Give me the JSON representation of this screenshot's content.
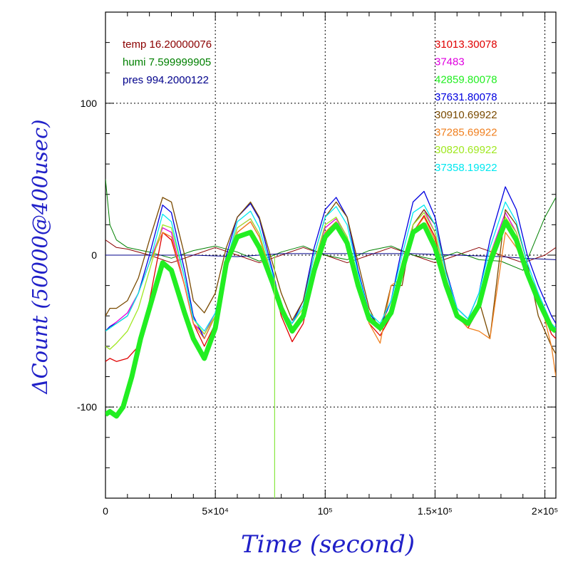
{
  "chart_data": {
    "type": "line",
    "xlabel": "Time (second)",
    "ylabel": "ΔCount (50000@400usec)",
    "xlim": [
      0,
      205000
    ],
    "ylim": [
      -160,
      160
    ],
    "x_ticks": [
      {
        "value": 0,
        "label": "0"
      },
      {
        "value": 50000,
        "label": "5×10⁴"
      },
      {
        "value": 100000,
        "label": "10⁵"
      },
      {
        "value": 150000,
        "label": "1.5×10⁵"
      },
      {
        "value": 200000,
        "label": "2×10⁵"
      }
    ],
    "y_ticks": [
      {
        "value": -100,
        "label": "-100"
      },
      {
        "value": 0,
        "label": "0"
      },
      {
        "value": 100,
        "label": "100"
      }
    ],
    "grid": "dotted at major ticks",
    "env_labels": [
      {
        "text": "temp 16.20000076",
        "color": "#8b0000"
      },
      {
        "text": "humi 7.599999905",
        "color": "#008000"
      },
      {
        "text": "pres 994.2000122",
        "color": "#00008b"
      }
    ],
    "series": [
      {
        "name": "31013.30078",
        "color": "#e00000",
        "kind": "osc",
        "x": [
          0,
          2000,
          5000,
          10000,
          15000,
          20000,
          26000,
          30000,
          36000,
          40000,
          45000,
          50000,
          55000,
          60000,
          66000,
          70000,
          76000,
          80000,
          85000,
          90000,
          95000,
          100000,
          105000,
          110000,
          115000,
          120000,
          125000,
          130000,
          135000,
          140000,
          145000,
          150000,
          155000,
          160000,
          165000,
          170000,
          175000,
          182000,
          187000,
          192000,
          197000,
          203000,
          205000
        ],
        "y": [
          -70,
          -68,
          -70,
          -68,
          -60,
          -30,
          15,
          10,
          -20,
          -45,
          -60,
          -45,
          -10,
          15,
          22,
          12,
          -15,
          -40,
          -57,
          -45,
          -10,
          15,
          22,
          10,
          -20,
          -45,
          -53,
          -40,
          -10,
          15,
          26,
          12,
          -20,
          -40,
          -48,
          -35,
          -5,
          25,
          12,
          -10,
          -30,
          -52,
          -55
        ]
      },
      {
        "name": "37483",
        "color": "#e000e0",
        "kind": "osc",
        "x": [
          0,
          2000,
          5000,
          10000,
          15000,
          20000,
          26000,
          30000,
          36000,
          40000,
          45000,
          50000,
          55000,
          60000,
          66000,
          70000,
          76000,
          80000,
          85000,
          90000,
          95000,
          100000,
          105000,
          110000,
          115000,
          120000,
          125000,
          130000,
          135000,
          140000,
          145000,
          150000,
          155000,
          160000,
          165000,
          170000,
          175000,
          182000,
          187000,
          192000,
          197000,
          203000,
          205000
        ],
        "y": [
          -50,
          -47,
          -44,
          -38,
          -25,
          -5,
          18,
          15,
          -20,
          -45,
          -52,
          -38,
          -5,
          18,
          24,
          14,
          -15,
          -35,
          -48,
          -38,
          -5,
          18,
          24,
          12,
          -15,
          -40,
          -48,
          -35,
          -5,
          20,
          30,
          15,
          -15,
          -38,
          -45,
          -30,
          0,
          28,
          15,
          -10,
          -28,
          -48,
          -50
        ]
      },
      {
        "name": "42859.80078",
        "color": "#22ee22",
        "kind": "band",
        "x": [
          0,
          2000,
          5000,
          8000,
          12000,
          16000,
          20000,
          26000,
          30000,
          36000,
          40000,
          45000,
          50000,
          55000,
          60000,
          66000,
          70000,
          76000,
          80000,
          85000,
          90000,
          95000,
          100000,
          105000,
          110000,
          115000,
          120000,
          125000,
          130000,
          135000,
          140000,
          145000,
          150000,
          155000,
          160000,
          165000,
          170000,
          175000,
          182000,
          187000,
          192000,
          197000,
          203000,
          205000
        ],
        "y": [
          -105,
          -103,
          -106,
          -100,
          -80,
          -55,
          -35,
          -5,
          -10,
          -38,
          -55,
          -68,
          -48,
          -5,
          12,
          15,
          5,
          -18,
          -35,
          -50,
          -40,
          -10,
          12,
          20,
          8,
          -20,
          -42,
          -48,
          -38,
          -10,
          15,
          20,
          5,
          -20,
          -40,
          -45,
          -33,
          -5,
          22,
          10,
          -12,
          -30,
          -48,
          -50
        ]
      },
      {
        "name": "37631.80078",
        "color": "#0000e0",
        "kind": "osc",
        "x": [
          0,
          2000,
          5000,
          10000,
          15000,
          20000,
          26000,
          30000,
          36000,
          40000,
          45000,
          50000,
          55000,
          60000,
          66000,
          70000,
          76000,
          80000,
          85000,
          90000,
          95000,
          100000,
          105000,
          110000,
          115000,
          120000,
          125000,
          130000,
          135000,
          140000,
          145000,
          150000,
          155000,
          160000,
          165000,
          170000,
          175000,
          182000,
          187000,
          192000,
          197000,
          203000,
          205000
        ],
        "y": [
          -50,
          -47,
          -45,
          -40,
          -25,
          0,
          33,
          28,
          -10,
          -40,
          -55,
          -40,
          0,
          25,
          34,
          24,
          -10,
          -35,
          -45,
          -30,
          5,
          30,
          38,
          25,
          -10,
          -38,
          -48,
          -30,
          5,
          35,
          42,
          25,
          -10,
          -35,
          -42,
          -25,
          10,
          45,
          30,
          0,
          -20,
          -40,
          -45
        ]
      },
      {
        "name": "30910.69922",
        "color": "#7a4a00",
        "kind": "osc",
        "x": [
          0,
          2000,
          5000,
          10000,
          15000,
          20000,
          26000,
          30000,
          36000,
          40000,
          45000,
          50000,
          55000,
          60000,
          66000,
          70000,
          76000,
          80000,
          85000,
          90000,
          95000,
          100000,
          105000,
          110000,
          115000,
          120000,
          125000,
          130000,
          135000,
          140000,
          145000,
          150000,
          155000,
          160000,
          165000,
          170000,
          175000,
          182000,
          187000,
          192000,
          197000,
          203000,
          205000
        ],
        "y": [
          -40,
          -35,
          -35,
          -30,
          -15,
          10,
          38,
          35,
          0,
          -30,
          -38,
          -25,
          5,
          25,
          35,
          25,
          -5,
          -25,
          -43,
          -30,
          0,
          25,
          35,
          25,
          -5,
          -35,
          -50,
          -20,
          -20,
          20,
          30,
          20,
          -10,
          -40,
          -45,
          -30,
          -55,
          30,
          20,
          -5,
          -40,
          -60,
          -65
        ]
      },
      {
        "name": "37285.69922",
        "color": "#f08020",
        "kind": "osc",
        "x": [
          0,
          5000,
          10000,
          15000,
          20000,
          26000,
          30000,
          36000,
          40000,
          45000,
          50000,
          55000,
          60000,
          66000,
          70000,
          76000,
          80000,
          85000,
          90000,
          95000,
          100000,
          105000,
          110000,
          115000,
          120000,
          125000,
          130000,
          135000,
          140000,
          145000,
          150000,
          155000,
          160000,
          165000,
          170000,
          175000,
          182000,
          187000,
          192000,
          197000,
          203000,
          205000
        ],
        "y": [
          -50,
          -45,
          -40,
          -25,
          -5,
          15,
          12,
          -20,
          -45,
          -55,
          -40,
          -5,
          15,
          22,
          12,
          -15,
          -35,
          -50,
          -40,
          -5,
          15,
          22,
          10,
          -15,
          -45,
          -58,
          -20,
          -15,
          15,
          25,
          10,
          -20,
          -40,
          -48,
          -50,
          -55,
          15,
          5,
          -10,
          -25,
          -60,
          -80
        ]
      },
      {
        "name": "30820.69922",
        "color": "#a0e820",
        "kind": "osc",
        "x": [
          0,
          2000,
          5000,
          10000,
          15000,
          20000,
          26000,
          30000,
          36000,
          40000,
          45000,
          50000,
          55000,
          60000,
          66000,
          70000,
          76000,
          80000,
          85000,
          90000,
          95000,
          100000,
          105000,
          110000,
          115000,
          120000,
          125000,
          130000,
          135000,
          140000,
          145000,
          150000,
          155000,
          160000,
          165000,
          170000,
          175000,
          182000,
          187000,
          192000,
          197000,
          203000,
          205000
        ],
        "y": [
          -60,
          -62,
          -58,
          -50,
          -35,
          -10,
          20,
          18,
          -15,
          -42,
          -52,
          -40,
          -5,
          18,
          24,
          14,
          -15,
          -35,
          -45,
          -35,
          -5,
          20,
          25,
          12,
          -15,
          -40,
          -48,
          -35,
          -5,
          20,
          28,
          15,
          -15,
          -38,
          -45,
          -30,
          0,
          25,
          15,
          -10,
          -28,
          -48,
          -50
        ]
      },
      {
        "name": "37358.19922",
        "color": "#00e8f0",
        "kind": "osc",
        "x": [
          0,
          2000,
          5000,
          10000,
          15000,
          20000,
          26000,
          30000,
          36000,
          40000,
          45000,
          50000,
          55000,
          60000,
          66000,
          70000,
          76000,
          80000,
          85000,
          90000,
          95000,
          100000,
          105000,
          110000,
          115000,
          120000,
          125000,
          130000,
          135000,
          140000,
          145000,
          150000,
          155000,
          160000,
          165000,
          170000,
          175000,
          182000,
          187000,
          192000,
          197000,
          203000,
          205000
        ],
        "y": [
          -50,
          -48,
          -45,
          -40,
          -25,
          -5,
          27,
          22,
          -15,
          -42,
          -50,
          -38,
          -5,
          22,
          29,
          18,
          -12,
          -35,
          -45,
          -33,
          0,
          25,
          32,
          20,
          -12,
          -38,
          -45,
          -30,
          0,
          28,
          33,
          20,
          -12,
          -35,
          -42,
          -25,
          5,
          35,
          22,
          -5,
          -25,
          -45,
          -48
        ]
      },
      {
        "name": "temp 16.20000076",
        "color": "#8b0000",
        "kind": "env",
        "x": [
          0,
          5000,
          10000,
          20000,
          30000,
          40000,
          50000,
          60000,
          70000,
          80000,
          90000,
          100000,
          110000,
          120000,
          130000,
          140000,
          150000,
          160000,
          170000,
          180000,
          190000,
          200000,
          205000
        ],
        "y": [
          10,
          5,
          4,
          0,
          -5,
          0,
          5,
          0,
          -5,
          0,
          5,
          0,
          -5,
          0,
          5,
          0,
          -5,
          0,
          5,
          0,
          -5,
          0,
          5
        ]
      },
      {
        "name": "humi 7.599999905",
        "color": "#008000",
        "kind": "env",
        "x": [
          0,
          2000,
          5000,
          10000,
          20000,
          30000,
          40000,
          50000,
          60000,
          70000,
          80000,
          90000,
          100000,
          110000,
          120000,
          130000,
          140000,
          150000,
          160000,
          170000,
          180000,
          190000,
          200000,
          205000
        ],
        "y": [
          50,
          20,
          10,
          5,
          2,
          -2,
          3,
          6,
          2,
          -4,
          2,
          6,
          0,
          -3,
          3,
          6,
          0,
          -3,
          2,
          -3,
          -4,
          -10,
          25,
          38
        ]
      },
      {
        "name": "pres 994.2000122",
        "color": "#00008b",
        "kind": "env",
        "x": [
          0,
          20000,
          40000,
          60000,
          80000,
          100000,
          120000,
          140000,
          160000,
          180000,
          190000,
          205000
        ],
        "y": [
          0,
          0,
          0,
          -1,
          1,
          1,
          1,
          1,
          0,
          -1,
          -2,
          -3
        ]
      }
    ],
    "spikes": [
      {
        "x": 77000,
        "from": -160,
        "to": 0,
        "color": "#88e840"
      }
    ]
  }
}
